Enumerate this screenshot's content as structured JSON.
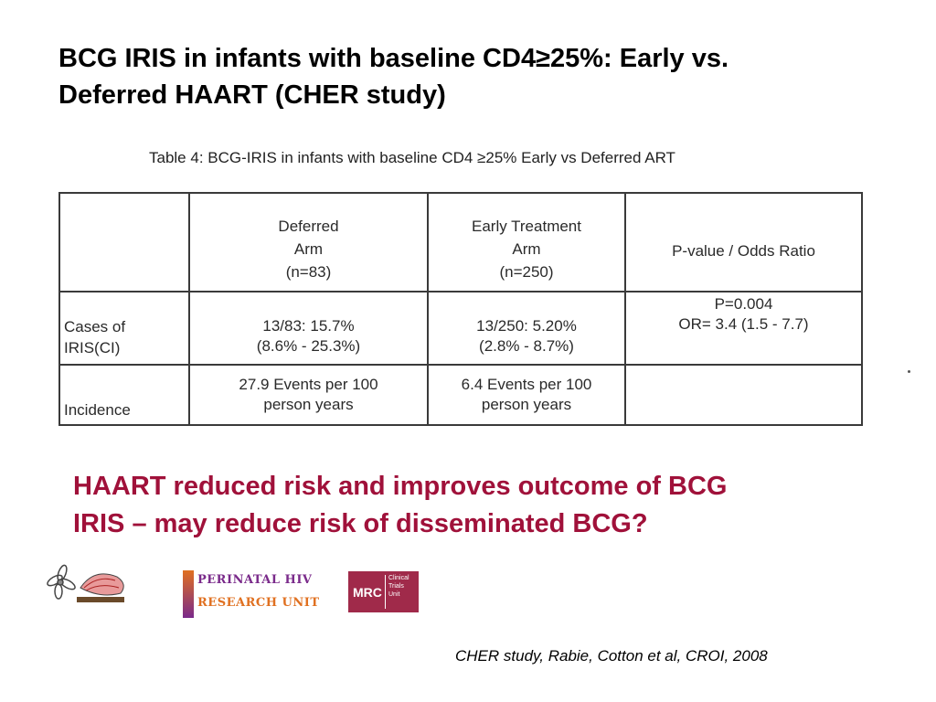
{
  "slide": {
    "title_line1": "BCG IRIS in infants with baseline CD4≥25%: Early vs.",
    "title_line2": "Deferred HAART (CHER study)"
  },
  "table": {
    "caption": "Table 4: BCG-IRIS in infants with baseline CD4 ≥25% Early vs Deferred ART",
    "headers": [
      [
        ""
      ],
      [
        "Deferred",
        "Arm",
        "(n=83)"
      ],
      [
        "Early Treatment",
        "Arm",
        "(n=250)"
      ],
      [
        "P-value / Odds Ratio"
      ]
    ],
    "rows": [
      {
        "label": [
          "Cases of",
          "IRIS(CI)"
        ],
        "deferred": [
          "13/83: 15.7%",
          "(8.6% - 25.3%)"
        ],
        "early": [
          "13/250: 5.20%",
          "(2.8% - 8.7%)"
        ],
        "pvalue": [
          "P=0.004",
          "OR= 3.4 (1.5 - 7.7)"
        ]
      },
      {
        "label": [
          "Incidence"
        ],
        "deferred": [
          "27.9 Events per 100",
          "person years"
        ],
        "early": [
          "6.4 Events per 100",
          "person years"
        ],
        "pvalue": []
      }
    ]
  },
  "conclusion": {
    "line1": "HAART reduced risk and improves outcome of BCG",
    "line2": "IRIS – may reduce risk of disseminated BCG?"
  },
  "logos": {
    "perinatal_line1": "PERINATAL HIV",
    "perinatal_line2": "RESEARCH UNIT",
    "mrc_text": "MRC",
    "mrc_unit": [
      "Clinical",
      "Trials",
      "Unit"
    ]
  },
  "citation": "CHER study, Rabie, Cotton et al, CROI, 2008",
  "colors": {
    "conclusion_text": "#a0113a",
    "mrc_logo_bg": "#a02a4a",
    "perinatal_purple": "#7a2a8a",
    "perinatal_orange": "#e07020"
  },
  "icons": [
    "flower-logo-icon",
    "perinatal-hiv-logo",
    "mrc-logo"
  ]
}
